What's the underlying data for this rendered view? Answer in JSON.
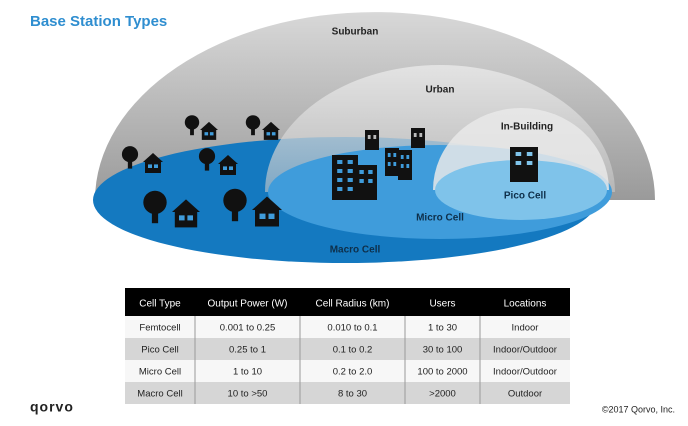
{
  "title": "Base Station Types",
  "zones": [
    {
      "label": "Suburban"
    },
    {
      "label": "Urban"
    },
    {
      "label": "In-Building"
    },
    {
      "label": "Pico Cell"
    },
    {
      "label": "Micro Cell"
    },
    {
      "label": "Macro Cell"
    }
  ],
  "table": {
    "header": [
      "Cell Type",
      "Output Power (W)",
      "Cell Radius (km)",
      "Users",
      "Locations"
    ],
    "rows": [
      [
        "Femtocell",
        "0.001 to 0.25",
        "0.010 to 0.1",
        "1 to 30",
        "Indoor"
      ],
      [
        "Pico Cell",
        "0.25 to 1",
        "0.1 to 0.2",
        "30 to 100",
        "Indoor/Outdoor"
      ],
      [
        "Micro Cell",
        "1 to 10",
        "0.2 to 2.0",
        "100 to 2000",
        "Indoor/Outdoor"
      ],
      [
        "Macro Cell",
        "10 to >50",
        "8 to 30",
        ">2000",
        "Outdoor"
      ]
    ]
  },
  "logo": "qorvo",
  "copyright": "©2017 Qorvo, Inc."
}
